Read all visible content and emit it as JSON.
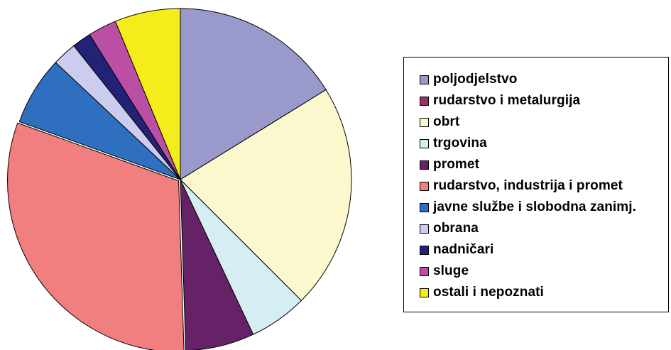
{
  "chart_data": {
    "type": "pie",
    "title": "",
    "legend_position": "right",
    "start_angle_deg": 0,
    "direction": "clockwise",
    "slices": [
      {
        "label": "poljodjelstvo",
        "value": 16.2,
        "color": "#9999CC"
      },
      {
        "label": "rudarstvo i metalurgija",
        "value": 0,
        "color": "#993366"
      },
      {
        "label": "obrt",
        "value": 21.3,
        "color": "#FAF8CC"
      },
      {
        "label": "trgovina",
        "value": 5.5,
        "color": "#D5EEF3"
      },
      {
        "label": "promet",
        "value": 6.5,
        "color": "#662266"
      },
      {
        "label": "rudarstvo, industrija i promet",
        "value": 31.0,
        "color": "#F27F7F"
      },
      {
        "label": "javne službe i slobodna zanimj.",
        "value": 6.5,
        "color": "#2F6FBF"
      },
      {
        "label": "obrana",
        "value": 2.3,
        "color": "#CCCCEE"
      },
      {
        "label": "nadničari",
        "value": 1.8,
        "color": "#222277"
      },
      {
        "label": "sluge",
        "value": 2.7,
        "color": "#BB4FA5"
      },
      {
        "label": "ostali i nepoznati",
        "value": 6.2,
        "color": "#F5EC1C"
      }
    ],
    "exploded_slice": "rudarstvo, industrija i promet"
  }
}
